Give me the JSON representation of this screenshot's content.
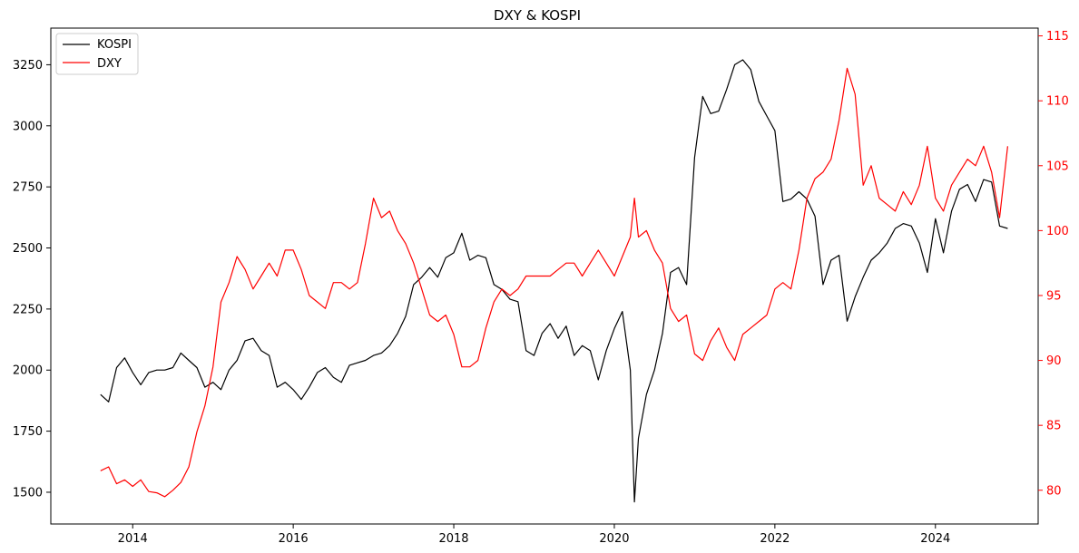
{
  "chart_data": {
    "type": "line",
    "title": "DXY & KOSPI",
    "xlabel": "",
    "ylabel_left": "",
    "ylabel_right": "",
    "x_ticks": [
      "2014",
      "2016",
      "2018",
      "2020",
      "2022",
      "2024"
    ],
    "x_range": [
      2012.98,
      2025.28
    ],
    "y_left": {
      "range": [
        1370,
        3400
      ],
      "ticks": [
        1500,
        1750,
        2000,
        2250,
        2500,
        2750,
        3000,
        3250
      ],
      "color": "#000000"
    },
    "y_right": {
      "range": [
        77.4,
        115.6
      ],
      "ticks": [
        80,
        85,
        90,
        95,
        100,
        105,
        110,
        115
      ],
      "color": "#ff0000"
    },
    "grid": false,
    "legend_position": "top-left",
    "series": [
      {
        "name": "KOSPI",
        "axis": "left",
        "color": "#000000",
        "x": [
          2013.6,
          2013.7,
          2013.8,
          2013.9,
          2014.0,
          2014.1,
          2014.2,
          2014.3,
          2014.4,
          2014.5,
          2014.6,
          2014.7,
          2014.8,
          2014.9,
          2015.0,
          2015.1,
          2015.2,
          2015.3,
          2015.4,
          2015.5,
          2015.6,
          2015.7,
          2015.8,
          2015.9,
          2016.0,
          2016.1,
          2016.2,
          2016.3,
          2016.4,
          2016.5,
          2016.6,
          2016.7,
          2016.8,
          2016.9,
          2017.0,
          2017.1,
          2017.2,
          2017.3,
          2017.4,
          2017.5,
          2017.6,
          2017.7,
          2017.8,
          2017.9,
          2018.0,
          2018.1,
          2018.2,
          2018.3,
          2018.4,
          2018.5,
          2018.6,
          2018.7,
          2018.8,
          2018.9,
          2019.0,
          2019.1,
          2019.2,
          2019.3,
          2019.4,
          2019.5,
          2019.6,
          2019.7,
          2019.8,
          2019.9,
          2020.0,
          2020.1,
          2020.2,
          2020.25,
          2020.3,
          2020.4,
          2020.5,
          2020.6,
          2020.7,
          2020.8,
          2020.9,
          2021.0,
          2021.1,
          2021.2,
          2021.3,
          2021.4,
          2021.5,
          2021.6,
          2021.7,
          2021.8,
          2021.9,
          2022.0,
          2022.1,
          2022.2,
          2022.3,
          2022.4,
          2022.5,
          2022.6,
          2022.7,
          2022.8,
          2022.9,
          2023.0,
          2023.1,
          2023.2,
          2023.3,
          2023.4,
          2023.5,
          2023.6,
          2023.7,
          2023.8,
          2023.9,
          2024.0,
          2024.1,
          2024.2,
          2024.3,
          2024.4,
          2024.5,
          2024.6,
          2024.7,
          2024.8,
          2024.9
        ],
        "y": [
          1900,
          1870,
          2010,
          2050,
          1990,
          1940,
          1990,
          2000,
          2000,
          2010,
          2070,
          2040,
          2010,
          1930,
          1950,
          1920,
          2000,
          2040,
          2120,
          2130,
          2080,
          2060,
          1930,
          1950,
          1920,
          1880,
          1930,
          1990,
          2010,
          1970,
          1950,
          2020,
          2030,
          2040,
          2060,
          2070,
          2100,
          2150,
          2220,
          2350,
          2380,
          2420,
          2380,
          2460,
          2480,
          2560,
          2450,
          2470,
          2460,
          2350,
          2330,
          2290,
          2280,
          2080,
          2060,
          2150,
          2190,
          2130,
          2180,
          2060,
          2100,
          2080,
          1960,
          2080,
          2170,
          2240,
          2000,
          1460,
          1720,
          1900,
          2000,
          2150,
          2400,
          2420,
          2350,
          2870,
          3120,
          3050,
          3060,
          3150,
          3250,
          3270,
          3230,
          3100,
          3040,
          2980,
          2690,
          2700,
          2730,
          2700,
          2630,
          2350,
          2450,
          2470,
          2200,
          2300,
          2380,
          2450,
          2480,
          2520,
          2580,
          2600,
          2590,
          2520,
          2400,
          2620,
          2480,
          2650,
          2740,
          2760,
          2690,
          2780,
          2770,
          2590,
          2580
        ]
      },
      {
        "name": "DXY",
        "axis": "right",
        "color": "#ff0000",
        "x": [
          2013.6,
          2013.7,
          2013.8,
          2013.9,
          2014.0,
          2014.1,
          2014.2,
          2014.3,
          2014.4,
          2014.5,
          2014.6,
          2014.7,
          2014.8,
          2014.9,
          2015.0,
          2015.1,
          2015.2,
          2015.3,
          2015.4,
          2015.5,
          2015.6,
          2015.7,
          2015.8,
          2015.9,
          2016.0,
          2016.1,
          2016.2,
          2016.3,
          2016.4,
          2016.5,
          2016.6,
          2016.7,
          2016.8,
          2016.9,
          2017.0,
          2017.1,
          2017.2,
          2017.3,
          2017.4,
          2017.5,
          2017.6,
          2017.7,
          2017.8,
          2017.9,
          2018.0,
          2018.1,
          2018.2,
          2018.3,
          2018.4,
          2018.5,
          2018.6,
          2018.7,
          2018.8,
          2018.9,
          2019.0,
          2019.1,
          2019.2,
          2019.3,
          2019.4,
          2019.5,
          2019.6,
          2019.7,
          2019.8,
          2019.9,
          2020.0,
          2020.1,
          2020.2,
          2020.25,
          2020.3,
          2020.4,
          2020.5,
          2020.6,
          2020.7,
          2020.8,
          2020.9,
          2021.0,
          2021.1,
          2021.2,
          2021.3,
          2021.4,
          2021.5,
          2021.6,
          2021.7,
          2021.8,
          2021.9,
          2022.0,
          2022.1,
          2022.2,
          2022.3,
          2022.4,
          2022.5,
          2022.6,
          2022.7,
          2022.8,
          2022.9,
          2023.0,
          2023.1,
          2023.2,
          2023.3,
          2023.4,
          2023.5,
          2023.6,
          2023.7,
          2023.8,
          2023.9,
          2024.0,
          2024.1,
          2024.2,
          2024.3,
          2024.4,
          2024.5,
          2024.6,
          2024.7,
          2024.8,
          2024.9
        ],
        "y": [
          81.5,
          81.8,
          80.5,
          80.8,
          80.3,
          80.8,
          79.9,
          79.8,
          79.5,
          80.0,
          80.6,
          81.8,
          84.5,
          86.5,
          89.5,
          94.5,
          96.0,
          98.0,
          97.0,
          95.5,
          96.5,
          97.5,
          96.5,
          98.5,
          98.5,
          97.0,
          95.0,
          94.5,
          94.0,
          96.0,
          96.0,
          95.5,
          96.0,
          99.0,
          102.5,
          101.0,
          101.5,
          100.0,
          99.0,
          97.5,
          95.5,
          93.5,
          93.0,
          93.5,
          92.0,
          89.5,
          89.5,
          90.0,
          92.5,
          94.5,
          95.5,
          95.0,
          95.5,
          96.5,
          96.5,
          96.5,
          96.5,
          97.0,
          97.5,
          97.5,
          96.5,
          97.5,
          98.5,
          97.5,
          96.5,
          98.0,
          99.5,
          102.5,
          99.5,
          100.0,
          98.5,
          97.5,
          94.0,
          93.0,
          93.5,
          90.5,
          90.0,
          91.5,
          92.5,
          91.0,
          90.0,
          92.0,
          92.5,
          93.0,
          93.5,
          95.5,
          96.0,
          95.5,
          98.5,
          102.5,
          104.0,
          104.5,
          105.5,
          108.5,
          112.5,
          110.5,
          103.5,
          105.0,
          102.5,
          102.0,
          101.5,
          103.0,
          102.0,
          103.5,
          106.5,
          102.5,
          101.5,
          103.5,
          104.5,
          105.5,
          105.0,
          106.5,
          104.5,
          101.0,
          106.5
        ]
      }
    ]
  }
}
